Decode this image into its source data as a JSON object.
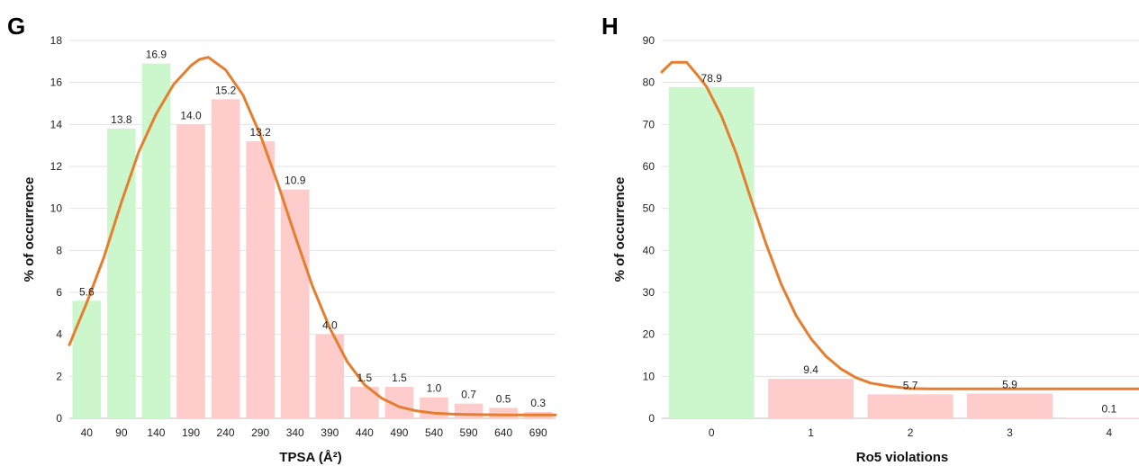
{
  "chart_data": [
    {
      "panel": "G",
      "type": "bar",
      "xlabel": "TPSA (Å²)",
      "ylabel": "% of occurrence",
      "ylim": [
        0,
        18
      ],
      "yticks": [
        0,
        2,
        4,
        6,
        8,
        10,
        12,
        14,
        16,
        18
      ],
      "grid": true,
      "categories": [
        "40",
        "90",
        "140",
        "190",
        "240",
        "290",
        "340",
        "390",
        "440",
        "490",
        "540",
        "590",
        "640",
        "690"
      ],
      "values": [
        5.6,
        13.8,
        16.9,
        14.0,
        15.2,
        13.2,
        10.9,
        4.0,
        1.5,
        1.5,
        1.0,
        0.7,
        0.5,
        0.3
      ],
      "value_labels": [
        "5.6",
        "13.8",
        "16.9",
        "14.0",
        "15.2",
        "13.2",
        "10.9",
        "4.0",
        "1.5",
        "1.5",
        "1.0",
        "0.7",
        "0.5",
        "0.3"
      ],
      "bar_colors": [
        "#ccf7cc",
        "#ccf7cc",
        "#ccf7cc",
        "#ffcccc",
        "#ffcccc",
        "#ffcccc",
        "#ffcccc",
        "#ffcccc",
        "#ffcccc",
        "#ffcccc",
        "#ffcccc",
        "#ffcccc",
        "#ffcccc",
        "#ffcccc"
      ],
      "curve_color": "#e57e2f",
      "curve": {
        "x": [
          -0.5,
          0,
          0.5,
          1,
          1.5,
          2,
          2.5,
          3,
          3.25,
          3.5,
          4,
          4.5,
          5,
          5.5,
          6,
          6.5,
          7,
          7.5,
          8,
          8.5,
          9,
          9.5,
          10,
          10.5,
          11,
          11.5,
          12,
          12.5,
          13,
          13.5
        ],
        "y": [
          3.5,
          5.5,
          7.7,
          10.3,
          12.7,
          14.5,
          15.9,
          16.8,
          17.1,
          17.2,
          16.6,
          15.4,
          13.5,
          11.2,
          8.7,
          6.3,
          4.3,
          2.7,
          1.6,
          0.95,
          0.55,
          0.35,
          0.25,
          0.2,
          0.18,
          0.17,
          0.16,
          0.16,
          0.16,
          0.16
        ]
      }
    },
    {
      "panel": "H",
      "type": "bar",
      "xlabel": "Ro5 violations",
      "ylabel": "% of occurrence",
      "ylim": [
        0,
        90
      ],
      "yticks": [
        0,
        10,
        20,
        30,
        40,
        50,
        60,
        70,
        80,
        90
      ],
      "grid": true,
      "categories": [
        "0",
        "1",
        "2",
        "3",
        "4"
      ],
      "values": [
        78.9,
        9.4,
        5.7,
        5.9,
        0.1
      ],
      "value_labels": [
        "78.9",
        "9.4",
        "5.7",
        "5.9",
        "0.1"
      ],
      "bar_colors": [
        "#ccf7cc",
        "#ffcccc",
        "#ffcccc",
        "#ffcccc",
        "#ffcccc"
      ],
      "curve_color": "#e57e2f",
      "curve": {
        "x": [
          -0.5,
          -0.4,
          -0.25,
          -0.15,
          -0.05,
          0.1,
          0.25,
          0.4,
          0.55,
          0.7,
          0.85,
          1.0,
          1.15,
          1.3,
          1.45,
          1.6,
          1.8,
          2.0,
          2.2,
          2.5,
          3.0,
          3.5,
          4.0,
          4.5
        ],
        "y": [
          82.5,
          84.8,
          84.8,
          82.0,
          79.0,
          72.0,
          63.0,
          52.0,
          41.5,
          32.0,
          24.5,
          19.0,
          14.8,
          11.8,
          9.7,
          8.4,
          7.6,
          7.1,
          7.0,
          7.0,
          7.0,
          7.0,
          7.0,
          7.0
        ]
      }
    }
  ]
}
